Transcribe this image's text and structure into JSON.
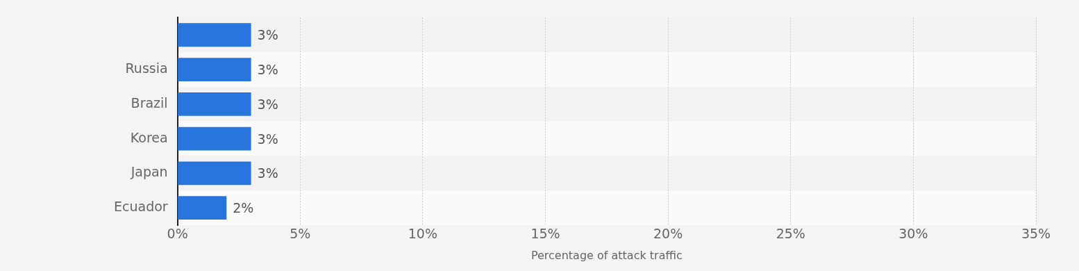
{
  "chart_data": {
    "type": "bar",
    "orientation": "horizontal",
    "xlabel": "Percentage of attack traffic",
    "categories": [
      null,
      "Russia",
      "Brazil",
      "Korea",
      "Japan",
      "Ecuador"
    ],
    "values": [
      3,
      3,
      3,
      3,
      3,
      2
    ],
    "value_labels": [
      "3%",
      "3%",
      "3%",
      "3%",
      "3%",
      "2%"
    ],
    "color": "#2775dd",
    "xlim": [
      0,
      35
    ],
    "xticks": [
      {
        "value": 0,
        "label": "0%"
      },
      {
        "value": 5,
        "label": "5%"
      },
      {
        "value": 10,
        "label": "10%"
      },
      {
        "value": 15,
        "label": "15%"
      },
      {
        "value": 20,
        "label": "20%"
      },
      {
        "value": 25,
        "label": "25%"
      },
      {
        "value": 30,
        "label": "30%"
      },
      {
        "value": 35,
        "label": "35%"
      }
    ],
    "grid": "x",
    "legend": false
  }
}
